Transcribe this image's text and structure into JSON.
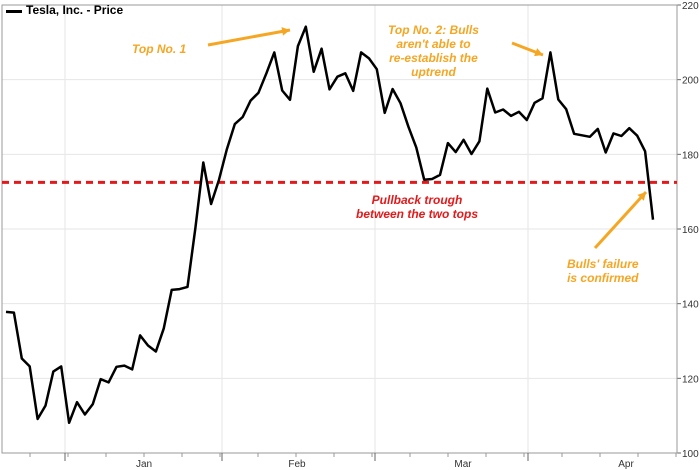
{
  "chart_data": {
    "type": "line",
    "title": "",
    "xlabel": "",
    "ylabel": "",
    "ylim": [
      100,
      220
    ],
    "y_ticks": [
      100,
      120,
      140,
      160,
      180,
      200,
      220
    ],
    "x_month_labels": [
      "Jan",
      "Feb",
      "Mar",
      "Apr"
    ],
    "grid": true,
    "legend_placement": "top-left",
    "series": [
      {
        "name": "Tesla, Inc. - Price",
        "color": "#000000",
        "values": [
          137.8,
          137.6,
          125.3,
          123.2,
          109.1,
          112.7,
          121.8,
          123.2,
          108.1,
          113.6,
          110.3,
          113.1,
          119.8,
          118.9,
          123.1,
          123.4,
          122.4,
          131.5,
          128.8,
          127.2,
          133.4,
          143.7,
          143.9,
          144.5,
          160.3,
          177.8,
          166.7,
          173.2,
          181.4,
          188.1,
          190.0,
          194.4,
          196.5,
          201.7,
          207.3,
          197.1,
          194.6,
          209.0,
          214.2,
          202.1,
          208.3,
          197.4,
          200.8,
          201.7,
          197.0,
          207.3,
          205.7,
          202.8,
          191.1,
          197.5,
          193.7,
          187.4,
          181.8,
          173.2,
          173.4,
          174.5,
          183.0,
          180.6,
          183.9,
          180.1,
          183.5,
          197.6,
          191.2,
          192.0,
          190.3,
          191.4,
          189.2,
          193.8,
          195.0,
          207.3,
          194.7,
          192.1,
          185.5,
          185.1,
          184.7,
          186.8,
          180.5,
          185.6,
          184.9,
          187.0,
          185.0,
          180.8,
          162.5
        ]
      }
    ],
    "reference_lines": [
      {
        "type": "horizontal",
        "value": 172.5,
        "color": "#e31a1c",
        "style": "dashed"
      }
    ],
    "annotations": [
      {
        "text": "Top No. 1",
        "color": "#f5a623"
      },
      {
        "text": "Top No. 2: Bulls\naren't able to\nre-establish the\nuptrend",
        "color": "#f5a623"
      },
      {
        "text": "Pullback trough\nbetween the two tops",
        "color": "#e31a1c"
      },
      {
        "text": "Bulls' failure\nis confirmed",
        "color": "#f5a623"
      }
    ]
  }
}
